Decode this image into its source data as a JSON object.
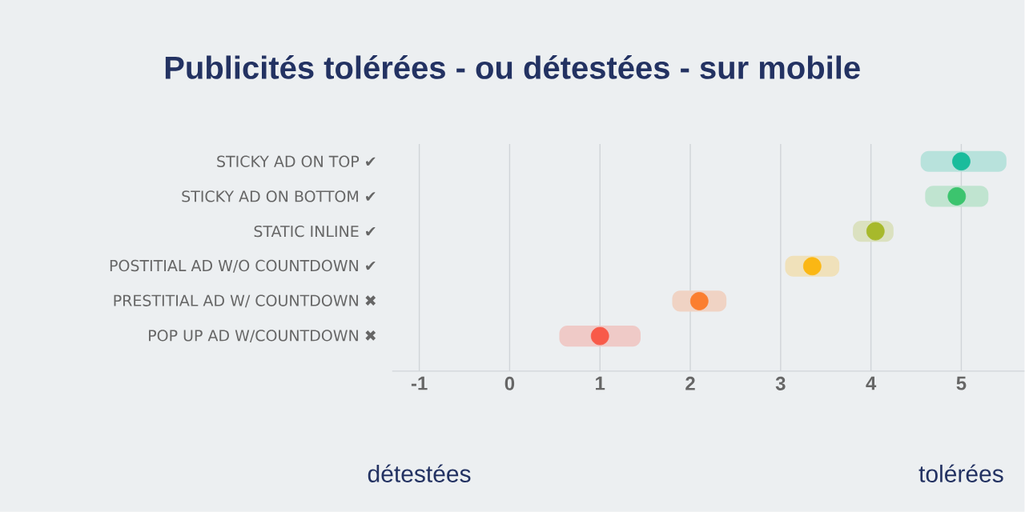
{
  "chart_data": {
    "type": "scatter",
    "orientation": "horizontal",
    "title": "Publicités tolérées - ou détestées - sur mobile",
    "categories": [
      "STICKY AD ON TOP ✔",
      "STICKY AD ON BOTTOM ✔",
      "STATIC INLINE ✔",
      "POSTITIAL AD W/O COUNTDOWN ✔",
      "PRESTITIAL AD W/ COUNTDOWN ✖",
      "POP UP AD W/COUNTDOWN ✖"
    ],
    "series": [
      {
        "type": "bar",
        "base": [
          4.55,
          4.6,
          3.8,
          3.05,
          1.8,
          0.55
        ],
        "values": [
          0.95,
          0.7,
          0.45,
          0.6,
          0.6,
          0.9
        ],
        "colors": [
          "#b8e2dc",
          "#c0e4d0",
          "#dbe1c0",
          "#f0e1ba",
          "#f0d3c4",
          "#efcac7"
        ]
      },
      {
        "values": [
          5.0,
          4.95,
          4.05,
          3.35,
          2.1,
          1.0
        ],
        "colors": [
          "#1abc9c",
          "#3cc46e",
          "#a7b92b",
          "#fbb714",
          "#fb7e2f",
          "#f85a49"
        ]
      }
    ],
    "xlim": [
      -1.3,
      5.7
    ],
    "xticks": [
      -1,
      0,
      1,
      2,
      3,
      4,
      5
    ],
    "grid": "x",
    "marker": "circle",
    "annotations": [
      "détestées",
      "tolérées"
    ]
  }
}
